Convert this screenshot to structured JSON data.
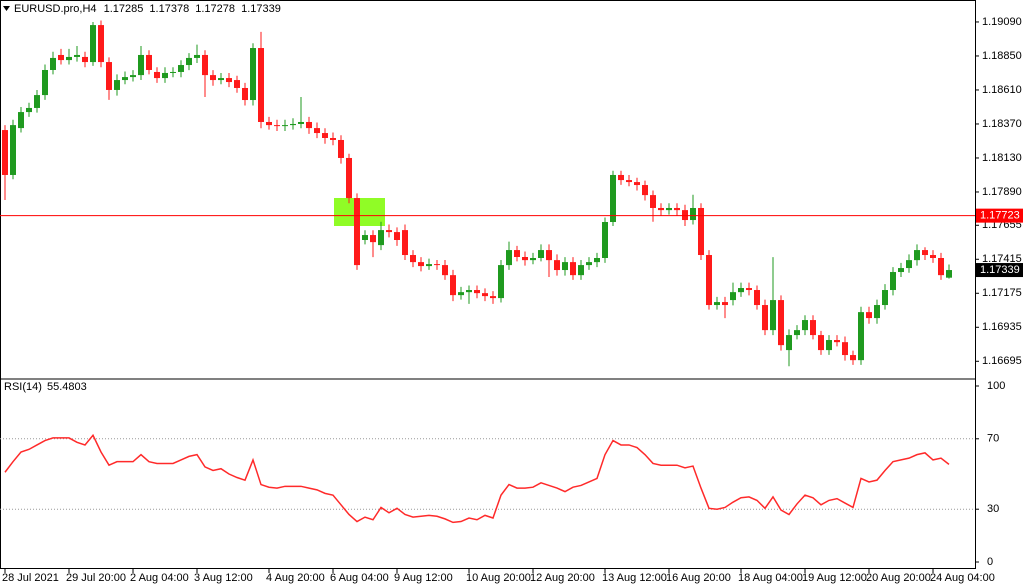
{
  "chart_data": [
    {
      "type": "candlestick",
      "title": "EURUSD.pro,H4",
      "categories": [
        "28 Jul 2021",
        null,
        null,
        null,
        null,
        null,
        null,
        null,
        "29 Jul 20:00",
        null,
        null,
        null,
        null,
        null,
        null,
        null,
        "2 Aug 04:00",
        null,
        null,
        null,
        null,
        null,
        null,
        null,
        "3 Aug 12:00",
        null,
        null,
        null,
        null,
        null,
        null,
        null,
        null,
        "4 Aug 20:00",
        null,
        null,
        null,
        null,
        null,
        null,
        null,
        "6 Aug 04:00",
        null,
        null,
        null,
        null,
        null,
        null,
        null,
        "9 Aug 12:00",
        null,
        null,
        null,
        null,
        null,
        null,
        null,
        null,
        "10 Aug 20:00",
        null,
        null,
        null,
        null,
        null,
        null,
        null,
        "12 Aug 20:00",
        null,
        null,
        null,
        null,
        null,
        null,
        null,
        null,
        "13 Aug 12:00",
        null,
        null,
        null,
        null,
        null,
        null,
        null,
        "16 Aug 20:00",
        null,
        null,
        null,
        null,
        null,
        null,
        null,
        null,
        "18 Aug 04:00",
        null,
        null,
        null,
        null,
        null,
        null,
        null,
        "19 Aug 12:00",
        null,
        null,
        null,
        null,
        null,
        null,
        null,
        "20 Aug 20:00",
        null,
        null,
        null,
        null,
        null,
        null,
        null,
        "24 Aug 04:00",
        null,
        null
      ],
      "open": [
        1.18327,
        1.1801,
        1.18341,
        1.18454,
        1.18483,
        1.18574,
        1.18751,
        1.18857,
        1.18821,
        1.18843,
        1.18843,
        1.18807,
        1.19068,
        1.18807,
        1.1861,
        1.1868,
        1.18701,
        1.18715,
        1.18857,
        1.18737,
        1.18694,
        1.1873,
        1.18737,
        1.18786,
        1.18836,
        1.18857,
        1.18715,
        1.1868,
        1.18694,
        1.1868,
        1.18624,
        1.18539,
        1.18906,
        1.18384,
        1.18362,
        1.18355,
        1.18362,
        1.1837,
        1.18384,
        1.18341,
        1.18306,
        1.18271,
        1.18257,
        1.1813,
        1.17847,
        1.17551,
        1.17586,
        1.17515,
        1.17621,
        1.17607,
        1.17621,
        1.17445,
        1.17395,
        1.17367,
        1.17381,
        1.17374,
        1.17303,
        1.17162,
        1.17183,
        1.17198,
        1.17176,
        1.17155,
        1.17141,
        1.17374,
        1.1748,
        1.17431,
        1.17409,
        1.17424,
        1.1748,
        1.17409,
        1.17339,
        1.17395,
        1.17303,
        1.17374,
        1.17395,
        1.17424,
        1.17678,
        1.1801,
        1.17974,
        1.1796,
        1.17939,
        1.17868,
        1.17777,
        1.17762,
        1.17777,
        1.17762,
        1.17692,
        1.17777,
        1.17445,
        1.17092,
        1.17113,
        1.17127,
        1.17183,
        1.17212,
        1.17198,
        1.17092,
        1.16915,
        1.17127,
        1.16774,
        1.1688,
        1.16915,
        1.16986,
        1.1688,
        1.16774,
        1.16845,
        1.1683,
        1.16739,
        1.16703,
        1.17042,
        1.17,
        1.17092,
        1.17198,
        1.17325,
        1.17353,
        1.17409,
        1.1748,
        1.17445,
        1.17424,
        1.17285
      ],
      "high": [
        1.18362,
        1.184,
        1.1849,
        1.1852,
        1.1861,
        1.1879,
        1.1888,
        1.189,
        1.189,
        1.1892,
        1.1888,
        1.1909,
        1.191,
        1.1884,
        1.1872,
        1.1874,
        1.1875,
        1.1892,
        1.1889,
        1.1877,
        1.1877,
        1.1877,
        1.1882,
        1.1887,
        1.1893,
        1.1889,
        1.1875,
        1.1873,
        1.1873,
        1.1871,
        1.1866,
        1.1894,
        1.1902,
        1.1842,
        1.184,
        1.184,
        1.1841,
        1.1856,
        1.1842,
        1.1838,
        1.1834,
        1.1831,
        1.1829,
        1.1816,
        1.1788,
        1.1762,
        1.1762,
        1.1768,
        1.1766,
        1.1764,
        1.1766,
        1.1748,
        1.1743,
        1.1742,
        1.1741,
        1.1741,
        1.1734,
        1.1722,
        1.1723,
        1.1723,
        1.1721,
        1.1719,
        1.1741,
        1.1754,
        1.1751,
        1.1747,
        1.1746,
        1.1752,
        1.1752,
        1.1745,
        1.1743,
        1.1743,
        1.1741,
        1.1743,
        1.1746,
        1.1771,
        1.1804,
        1.1804,
        1.1801,
        1.1799,
        1.1797,
        1.179,
        1.1781,
        1.1781,
        1.1781,
        1.178,
        1.1787,
        1.1781,
        1.1748,
        1.1715,
        1.1715,
        1.1725,
        1.1725,
        1.1725,
        1.1723,
        1.1713,
        1.1743,
        1.1716,
        1.1692,
        1.1695,
        1.1702,
        1.1702,
        1.1691,
        1.1688,
        1.1688,
        1.1687,
        1.1677,
        1.1708,
        1.1708,
        1.1713,
        1.1724,
        1.1736,
        1.1739,
        1.1745,
        1.1752,
        1.175,
        1.1748,
        1.1746,
        1.17378
      ],
      "low": [
        1.17833,
        1.1798,
        1.1831,
        1.1842,
        1.1845,
        1.1854,
        1.1872,
        1.1879,
        1.1879,
        1.1881,
        1.1877,
        1.1878,
        1.1877,
        1.1854,
        1.1857,
        1.1865,
        1.1867,
        1.1868,
        1.1872,
        1.1866,
        1.1866,
        1.187,
        1.187,
        1.1875,
        1.188,
        1.1856,
        1.1864,
        1.1865,
        1.1863,
        1.1859,
        1.185,
        1.185,
        1.1834,
        1.1833,
        1.1832,
        1.1832,
        1.1833,
        1.1834,
        1.183,
        1.1827,
        1.1823,
        1.1822,
        1.1809,
        1.1781,
        1.1734,
        1.1752,
        1.1743,
        1.1748,
        1.1757,
        1.1751,
        1.1741,
        1.1736,
        1.1733,
        1.1734,
        1.1734,
        1.1727,
        1.1712,
        1.1713,
        1.171,
        1.1714,
        1.1712,
        1.171,
        1.1711,
        1.1734,
        1.174,
        1.1737,
        1.1738,
        1.174,
        1.1729,
        1.173,
        1.173,
        1.1727,
        1.1727,
        1.1734,
        1.1736,
        1.1739,
        1.1765,
        1.1794,
        1.1793,
        1.179,
        1.1783,
        1.1768,
        1.1772,
        1.1773,
        1.1772,
        1.1765,
        1.1766,
        1.1741,
        1.1706,
        1.1706,
        1.17,
        1.1709,
        1.1715,
        1.1716,
        1.1706,
        1.1688,
        1.1688,
        1.1677,
        1.1666,
        1.1685,
        1.1688,
        1.1685,
        1.1674,
        1.1674,
        1.168,
        1.167,
        1.1667,
        1.1667,
        1.1696,
        1.1696,
        1.1706,
        1.1716,
        1.1729,
        1.1732,
        1.1737,
        1.1741,
        1.1739,
        1.1727,
        1.17278
      ],
      "close": [
        1.1801,
        1.18362,
        1.18454,
        1.18483,
        1.18574,
        1.18751,
        1.18836,
        1.18821,
        1.18843,
        1.18857,
        1.18807,
        1.19068,
        1.18807,
        1.1861,
        1.1868,
        1.18701,
        1.18715,
        1.18857,
        1.18751,
        1.18694,
        1.1873,
        1.18737,
        1.18786,
        1.18836,
        1.18857,
        1.18715,
        1.1868,
        1.18694,
        1.18666,
        1.18624,
        1.18539,
        1.18906,
        1.18384,
        1.18362,
        1.18355,
        1.18362,
        1.1837,
        1.18384,
        1.18341,
        1.18306,
        1.18271,
        1.18257,
        1.1813,
        1.17847,
        1.17374,
        1.17586,
        1.17536,
        1.17621,
        1.17607,
        1.17551,
        1.17445,
        1.17395,
        1.17367,
        1.17381,
        1.17374,
        1.17303,
        1.17162,
        1.17183,
        1.17198,
        1.17176,
        1.17155,
        1.17141,
        1.17374,
        1.1748,
        1.17431,
        1.17409,
        1.17424,
        1.1748,
        1.17409,
        1.17339,
        1.17395,
        1.17303,
        1.17374,
        1.17395,
        1.17424,
        1.17678,
        1.1801,
        1.17974,
        1.1796,
        1.17939,
        1.17868,
        1.17777,
        1.17762,
        1.17777,
        1.17762,
        1.17692,
        1.17777,
        1.17445,
        1.17092,
        1.17113,
        1.17092,
        1.17183,
        1.17212,
        1.17198,
        1.17092,
        1.16915,
        1.17127,
        1.16809,
        1.1688,
        1.16915,
        1.16986,
        1.1688,
        1.16774,
        1.16845,
        1.1683,
        1.16739,
        1.16703,
        1.17042,
        1.17,
        1.17092,
        1.17198,
        1.17325,
        1.17353,
        1.17409,
        1.1748,
        1.17445,
        1.17424,
        1.17303,
        1.17339
      ],
      "up_color": "#1f9a1f",
      "down_color": "#ff1a1a",
      "ylim": [
        1.16577,
        1.19245
      ],
      "yticks": [
        {
          "value": 1.1909,
          "label": "1.19090"
        },
        {
          "value": 1.1885,
          "label": "1.18850"
        },
        {
          "value": 1.1861,
          "label": "1.18610"
        },
        {
          "value": 1.1837,
          "label": "1.18370"
        },
        {
          "value": 1.1813,
          "label": "1.18130"
        },
        {
          "value": 1.1789,
          "label": "1.17890"
        },
        1.17655,
        1.17415,
        1.17175,
        1.16935,
        1.16695
      ],
      "hline": 1.17723,
      "hline_color": "#ff0000"
    },
    {
      "type": "line",
      "title": "RSI(14)",
      "color": "#ff2a2a",
      "values": [
        51,
        57,
        62.5,
        64,
        66.5,
        69,
        70.5,
        70.5,
        70.5,
        68,
        66.5,
        72,
        62.5,
        55,
        57,
        57,
        57,
        61,
        57,
        56,
        56,
        56,
        58,
        60,
        61,
        54,
        52,
        53,
        50,
        48,
        46.5,
        58,
        44,
        42.5,
        42,
        43,
        43,
        43,
        42,
        41,
        39,
        38,
        32.5,
        27,
        23,
        25.5,
        24,
        31,
        28,
        30.5,
        27,
        25.5,
        26,
        26.5,
        26,
        24.5,
        22.5,
        23,
        25,
        24,
        26.5,
        25,
        38,
        44,
        42,
        42,
        42.5,
        45,
        43.5,
        42,
        40,
        42.5,
        43.5,
        45.5,
        47.5,
        61,
        69,
        66.5,
        66.5,
        65,
        61,
        56,
        55,
        55,
        55,
        53.5,
        54.5,
        42,
        30.5,
        30,
        31,
        34,
        36.5,
        37,
        35,
        30.5,
        37,
        29.5,
        27,
        33,
        38,
        36.5,
        32.5,
        35,
        36,
        33.5,
        31,
        47.5,
        45.5,
        46.5,
        52,
        57,
        58,
        59,
        61,
        62,
        58,
        59,
        55.4803
      ],
      "ylim": [
        -3.4,
        103.4
      ],
      "yticks": [
        0,
        30,
        70,
        100
      ],
      "levels": [
        30,
        70
      ]
    }
  ]
}
